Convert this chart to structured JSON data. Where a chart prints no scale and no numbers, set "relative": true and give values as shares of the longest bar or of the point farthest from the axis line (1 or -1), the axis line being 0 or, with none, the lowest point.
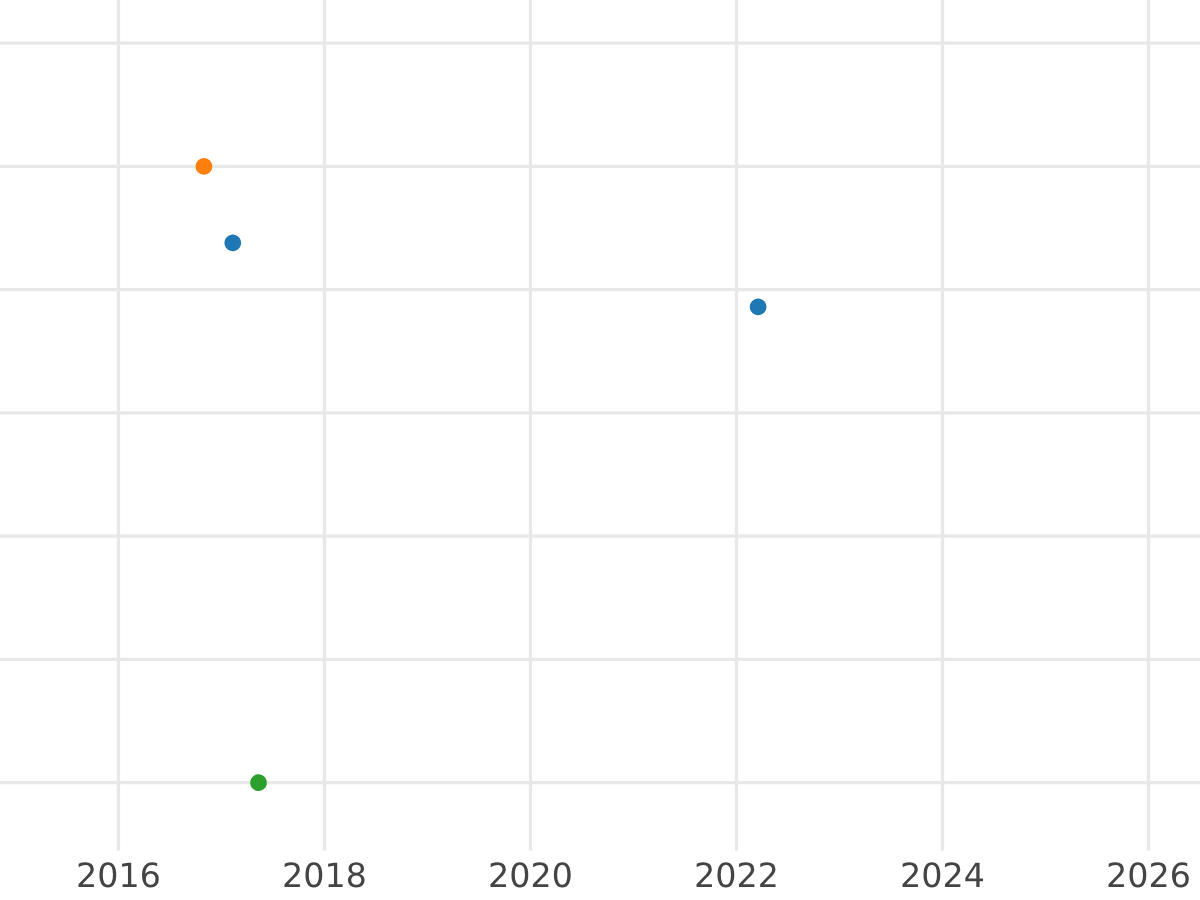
{
  "chart_data": {
    "type": "scatter",
    "relative": true,
    "xlim": [
      2014.85,
      2026.5
    ],
    "xticks": [
      2016,
      2018,
      2020,
      2022,
      2024,
      2026
    ],
    "grid": true,
    "tick_labels": "x",
    "marker": "circle",
    "series": [
      {
        "color": "#ff7f0e",
        "x": [
          2016.83
        ],
        "values": [
          1
        ]
      },
      {
        "color": "#1f77b4",
        "x": [
          2017.11,
          2022.21
        ],
        "values": [
          0.876,
          0.772
        ]
      },
      {
        "color": "#2ca02c",
        "x": [
          2017.36
        ],
        "values": [
          0
        ]
      }
    ]
  }
}
